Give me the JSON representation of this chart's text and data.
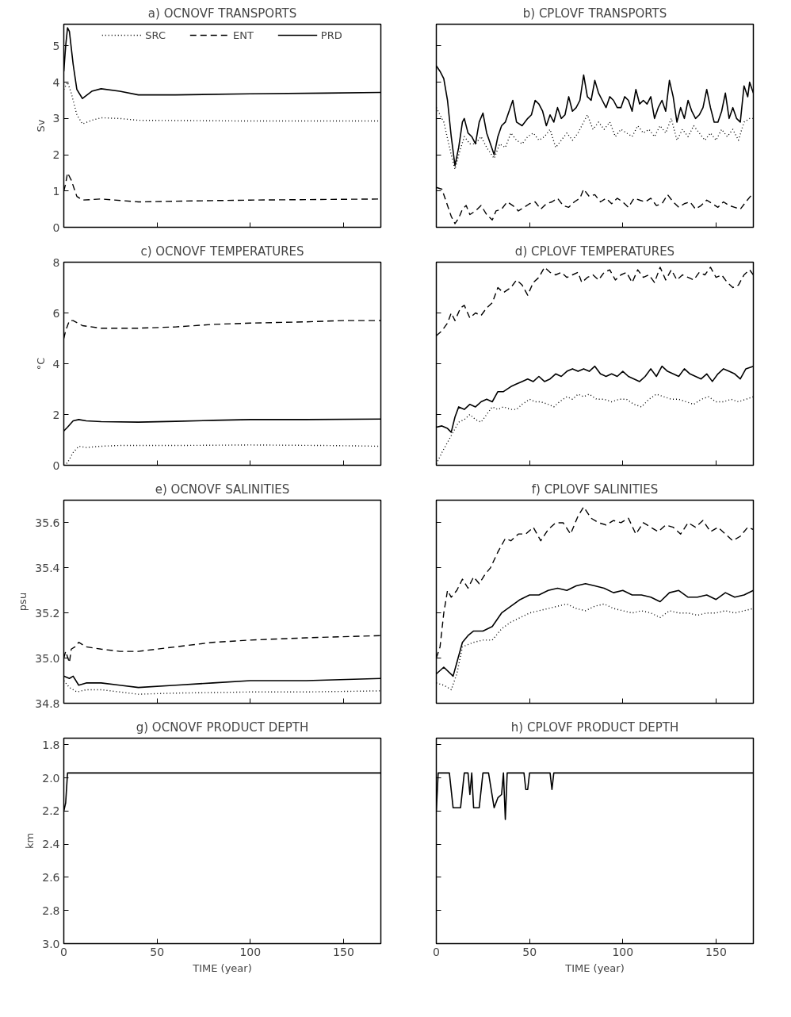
{
  "chart_data": [
    {
      "type": "line",
      "title": "a) OCNOVF TRANSPORTS",
      "ylabel": "Sv",
      "xlim": [
        0,
        170
      ],
      "ylim": [
        0,
        5.6
      ],
      "xticks": [
        0,
        50,
        100,
        150
      ],
      "yticks": [
        0,
        1,
        2,
        3,
        4,
        5
      ],
      "tick_labels": "y",
      "legend": "top",
      "series": [
        {
          "name": "SRC",
          "color": "#000000",
          "line_style": "dotted",
          "x": [
            0,
            2,
            4,
            7,
            10,
            15,
            20,
            30,
            40,
            100,
            170
          ],
          "values": [
            3.8,
            4.0,
            3.7,
            3.1,
            2.85,
            2.95,
            3.02,
            3.0,
            2.95,
            2.93,
            2.93
          ]
        },
        {
          "name": "ENT",
          "color": "#000000",
          "line_style": "dashed",
          "x": [
            0,
            1,
            2,
            4,
            7,
            10,
            20,
            40,
            60,
            100,
            170
          ],
          "values": [
            1.0,
            1.2,
            1.5,
            1.3,
            0.85,
            0.75,
            0.78,
            0.7,
            0.72,
            0.75,
            0.78
          ]
        },
        {
          "name": "PRD",
          "color": "#000000",
          "line_style": "solid",
          "x": [
            0,
            1,
            2,
            3,
            5,
            7,
            10,
            15,
            20,
            30,
            40,
            60,
            100,
            140,
            170
          ],
          "values": [
            4.3,
            5.0,
            5.5,
            5.4,
            4.5,
            3.8,
            3.55,
            3.75,
            3.82,
            3.75,
            3.65,
            3.65,
            3.68,
            3.7,
            3.72
          ]
        }
      ]
    },
    {
      "type": "line",
      "title": "b) CPLOVF TRANSPORTS",
      "xlim": [
        0,
        170
      ],
      "ylim": [
        0,
        5.6
      ],
      "xticks": [
        0,
        50,
        100,
        150
      ],
      "yticks": [
        0,
        1,
        2,
        3,
        4,
        5
      ],
      "tick_labels": false,
      "series": [
        {
          "color": "#000000",
          "line_style": "dotted",
          "x": [
            0,
            4,
            8,
            10,
            12,
            15,
            18,
            21,
            24,
            27,
            31,
            34,
            37,
            40,
            43,
            46,
            49,
            52,
            55,
            58,
            61,
            64,
            67,
            70,
            73,
            76,
            79,
            81,
            84,
            87,
            90,
            93,
            96,
            99,
            102,
            105,
            108,
            111,
            114,
            117,
            120,
            123,
            126,
            129,
            132,
            135,
            138,
            141,
            144,
            147,
            150,
            153,
            156,
            159,
            162,
            165,
            168,
            170
          ],
          "values": [
            3.3,
            2.9,
            2.0,
            1.6,
            2.0,
            2.5,
            2.3,
            2.3,
            2.5,
            2.2,
            1.9,
            2.3,
            2.2,
            2.6,
            2.4,
            2.3,
            2.5,
            2.6,
            2.4,
            2.5,
            2.7,
            2.2,
            2.4,
            2.6,
            2.4,
            2.6,
            2.9,
            3.1,
            2.7,
            2.9,
            2.7,
            2.9,
            2.5,
            2.7,
            2.6,
            2.5,
            2.8,
            2.6,
            2.7,
            2.5,
            2.8,
            2.6,
            3.0,
            2.4,
            2.7,
            2.5,
            2.8,
            2.6,
            2.4,
            2.6,
            2.4,
            2.7,
            2.5,
            2.7,
            2.4,
            2.9,
            3.0,
            3.0
          ]
        },
        {
          "color": "#000000",
          "line_style": "dashed",
          "x": [
            0,
            3,
            6,
            8,
            10,
            12,
            14,
            16,
            18,
            21,
            24,
            27,
            30,
            32,
            35,
            38,
            41,
            44,
            47,
            50,
            53,
            56,
            59,
            62,
            65,
            68,
            71,
            74,
            77,
            79,
            82,
            85,
            88,
            91,
            94,
            97,
            100,
            103,
            106,
            109,
            112,
            115,
            118,
            121,
            124,
            127,
            130,
            133,
            136,
            139,
            142,
            145,
            148,
            151,
            154,
            157,
            160,
            163,
            166,
            170
          ],
          "values": [
            1.1,
            1.05,
            0.6,
            0.3,
            0.1,
            0.25,
            0.5,
            0.6,
            0.35,
            0.45,
            0.6,
            0.35,
            0.2,
            0.45,
            0.5,
            0.7,
            0.6,
            0.45,
            0.55,
            0.65,
            0.7,
            0.5,
            0.65,
            0.7,
            0.8,
            0.6,
            0.55,
            0.7,
            0.8,
            1.05,
            0.85,
            0.9,
            0.7,
            0.8,
            0.65,
            0.8,
            0.7,
            0.55,
            0.8,
            0.75,
            0.7,
            0.8,
            0.6,
            0.65,
            0.9,
            0.7,
            0.55,
            0.65,
            0.7,
            0.5,
            0.6,
            0.75,
            0.65,
            0.55,
            0.7,
            0.6,
            0.55,
            0.5,
            0.7,
            0.95
          ]
        },
        {
          "color": "#000000",
          "line_style": "solid",
          "x": [
            0,
            2,
            4,
            6,
            8,
            10,
            12,
            14,
            15,
            17,
            19,
            21,
            23,
            25,
            27,
            29,
            31,
            33,
            35,
            37,
            39,
            41,
            43,
            46,
            49,
            51,
            53,
            55,
            57,
            59,
            61,
            63,
            65,
            67,
            69,
            71,
            73,
            75,
            77,
            79,
            81,
            83,
            85,
            87,
            89,
            91,
            93,
            95,
            97,
            99,
            101,
            103,
            105,
            107,
            109,
            111,
            113,
            115,
            117,
            119,
            121,
            123,
            125,
            127,
            129,
            131,
            133,
            135,
            137,
            139,
            141,
            143,
            145,
            147,
            149,
            151,
            153,
            155,
            157,
            159,
            161,
            163,
            165,
            167,
            168,
            170
          ],
          "values": [
            4.45,
            4.3,
            4.1,
            3.5,
            2.5,
            1.7,
            2.2,
            2.9,
            3.0,
            2.6,
            2.5,
            2.3,
            2.9,
            3.15,
            2.6,
            2.3,
            2.0,
            2.5,
            2.8,
            2.9,
            3.2,
            3.5,
            2.9,
            2.8,
            3.0,
            3.1,
            3.5,
            3.4,
            3.2,
            2.8,
            3.1,
            2.9,
            3.3,
            3.0,
            3.1,
            3.6,
            3.2,
            3.3,
            3.5,
            4.2,
            3.6,
            3.5,
            4.05,
            3.7,
            3.5,
            3.3,
            3.6,
            3.5,
            3.3,
            3.3,
            3.6,
            3.5,
            3.2,
            3.8,
            3.4,
            3.5,
            3.4,
            3.6,
            3.0,
            3.3,
            3.5,
            3.2,
            4.05,
            3.6,
            2.9,
            3.3,
            3.0,
            3.5,
            3.2,
            3.0,
            3.1,
            3.3,
            3.8,
            3.3,
            2.9,
            2.9,
            3.2,
            3.7,
            3.0,
            3.3,
            3.0,
            2.9,
            3.9,
            3.6,
            4.0,
            3.7
          ]
        }
      ]
    },
    {
      "type": "line",
      "title": "c) OCNOVF TEMPERATURES",
      "ylabel": "°C",
      "xlim": [
        0,
        170
      ],
      "ylim": [
        0,
        8
      ],
      "xticks": [
        0,
        50,
        100,
        150
      ],
      "yticks": [
        0,
        2,
        4,
        6,
        8
      ],
      "tick_labels": "y",
      "series": [
        {
          "color": "#000000",
          "line_style": "dotted",
          "x": [
            0,
            2,
            5,
            8,
            12,
            20,
            30,
            60,
            100,
            140,
            170
          ],
          "values": [
            0,
            0.1,
            0.5,
            0.75,
            0.7,
            0.75,
            0.78,
            0.78,
            0.8,
            0.78,
            0.75
          ]
        },
        {
          "color": "#000000",
          "line_style": "dashed",
          "x": [
            0,
            1,
            3,
            5,
            10,
            20,
            40,
            60,
            80,
            100,
            130,
            150,
            170
          ],
          "values": [
            5.0,
            5.3,
            5.7,
            5.7,
            5.5,
            5.4,
            5.4,
            5.45,
            5.55,
            5.6,
            5.65,
            5.7,
            5.7
          ]
        },
        {
          "color": "#000000",
          "line_style": "solid",
          "x": [
            0,
            2,
            5,
            8,
            12,
            20,
            40,
            60,
            80,
            100,
            130,
            170
          ],
          "values": [
            1.35,
            1.5,
            1.75,
            1.8,
            1.75,
            1.72,
            1.7,
            1.73,
            1.77,
            1.8,
            1.8,
            1.82
          ]
        }
      ]
    },
    {
      "type": "line",
      "title": "d) CPLOVF TEMPERATURES",
      "xlim": [
        0,
        170
      ],
      "ylim": [
        0,
        8
      ],
      "xticks": [
        0,
        50,
        100,
        150
      ],
      "yticks": [
        0,
        2,
        4,
        6,
        8
      ],
      "tick_labels": false,
      "series": [
        {
          "color": "#000000",
          "line_style": "dotted",
          "x": [
            0,
            3,
            6,
            9,
            12,
            15,
            18,
            21,
            24,
            27,
            30,
            33,
            36,
            40,
            43,
            46,
            50,
            53,
            56,
            60,
            63,
            66,
            70,
            73,
            76,
            79,
            82,
            86,
            90,
            94,
            98,
            102,
            106,
            110,
            114,
            118,
            122,
            126,
            130,
            134,
            138,
            142,
            146,
            150,
            154,
            158,
            162,
            166,
            170
          ],
          "values": [
            0.05,
            0.5,
            0.9,
            1.3,
            1.7,
            1.8,
            2.0,
            1.8,
            1.7,
            2.0,
            2.3,
            2.2,
            2.3,
            2.2,
            2.2,
            2.4,
            2.6,
            2.5,
            2.5,
            2.4,
            2.3,
            2.5,
            2.7,
            2.6,
            2.8,
            2.7,
            2.8,
            2.6,
            2.6,
            2.5,
            2.6,
            2.6,
            2.4,
            2.3,
            2.6,
            2.8,
            2.7,
            2.6,
            2.6,
            2.5,
            2.4,
            2.6,
            2.7,
            2.5,
            2.5,
            2.6,
            2.5,
            2.6,
            2.7
          ]
        },
        {
          "color": "#000000",
          "line_style": "dashed",
          "x": [
            0,
            3,
            6,
            8,
            10,
            13,
            15,
            18,
            21,
            24,
            27,
            30,
            33,
            36,
            40,
            43,
            46,
            49,
            52,
            55,
            58,
            61,
            64,
            67,
            70,
            73,
            76,
            78,
            81,
            84,
            87,
            90,
            93,
            96,
            99,
            102,
            105,
            108,
            111,
            114,
            117,
            120,
            123,
            126,
            129,
            132,
            135,
            138,
            141,
            144,
            147,
            150,
            153,
            156,
            159,
            162,
            165,
            168,
            170
          ],
          "values": [
            5.1,
            5.3,
            5.6,
            6.0,
            5.7,
            6.2,
            6.3,
            5.8,
            6.0,
            5.9,
            6.2,
            6.4,
            7.0,
            6.8,
            7.0,
            7.3,
            7.1,
            6.7,
            7.2,
            7.4,
            7.8,
            7.6,
            7.5,
            7.6,
            7.4,
            7.5,
            7.6,
            7.2,
            7.4,
            7.5,
            7.3,
            7.6,
            7.7,
            7.3,
            7.5,
            7.6,
            7.2,
            7.7,
            7.4,
            7.5,
            7.2,
            7.8,
            7.3,
            7.7,
            7.3,
            7.5,
            7.4,
            7.3,
            7.6,
            7.5,
            7.8,
            7.4,
            7.5,
            7.2,
            7.0,
            7.1,
            7.5,
            7.7,
            7.5
          ]
        },
        {
          "color": "#000000",
          "line_style": "solid",
          "x": [
            0,
            3,
            6,
            8,
            10,
            12,
            15,
            18,
            21,
            24,
            27,
            30,
            33,
            36,
            40,
            43,
            46,
            49,
            52,
            55,
            58,
            61,
            64,
            67,
            70,
            73,
            76,
            79,
            82,
            85,
            88,
            91,
            94,
            97,
            100,
            103,
            106,
            109,
            112,
            115,
            118,
            121,
            124,
            127,
            130,
            133,
            136,
            139,
            142,
            145,
            148,
            151,
            154,
            157,
            160,
            163,
            166,
            170
          ],
          "values": [
            1.5,
            1.55,
            1.45,
            1.3,
            1.9,
            2.3,
            2.2,
            2.4,
            2.3,
            2.5,
            2.6,
            2.5,
            2.9,
            2.9,
            3.1,
            3.2,
            3.3,
            3.4,
            3.3,
            3.5,
            3.3,
            3.4,
            3.6,
            3.5,
            3.7,
            3.8,
            3.7,
            3.8,
            3.7,
            3.9,
            3.6,
            3.5,
            3.6,
            3.5,
            3.7,
            3.5,
            3.4,
            3.3,
            3.5,
            3.8,
            3.5,
            3.9,
            3.7,
            3.6,
            3.5,
            3.8,
            3.6,
            3.5,
            3.4,
            3.6,
            3.3,
            3.6,
            3.8,
            3.7,
            3.6,
            3.4,
            3.8,
            3.9
          ]
        }
      ]
    },
    {
      "type": "line",
      "title": "e) OCNOVF SALINITIES",
      "ylabel": "psu",
      "xlim": [
        0,
        170
      ],
      "ylim": [
        34.8,
        35.7
      ],
      "xticks": [
        0,
        50,
        100,
        150
      ],
      "yticks": [
        34.8,
        {
          "value": 35,
          "label": "35.0"
        },
        35.2,
        35.4,
        35.6
      ],
      "tick_labels": "y",
      "series": [
        {
          "color": "#000000",
          "line_style": "dotted",
          "x": [
            0,
            3,
            7,
            12,
            20,
            40,
            60,
            100,
            130,
            170
          ],
          "values": [
            34.9,
            34.87,
            34.85,
            34.86,
            34.86,
            34.84,
            34.845,
            34.85,
            34.85,
            34.855
          ]
        },
        {
          "color": "#000000",
          "line_style": "dashed",
          "x": [
            0,
            1,
            3,
            4,
            6,
            8,
            12,
            20,
            30,
            40,
            60,
            80,
            100,
            130,
            170
          ],
          "values": [
            35.0,
            35.03,
            34.98,
            35.04,
            35.05,
            35.07,
            35.05,
            35.04,
            35.03,
            35.03,
            35.05,
            35.07,
            35.08,
            35.09,
            35.1
          ]
        },
        {
          "color": "#000000",
          "line_style": "solid",
          "x": [
            0,
            3,
            5,
            8,
            12,
            20,
            30,
            40,
            60,
            80,
            100,
            130,
            170
          ],
          "values": [
            34.92,
            34.91,
            34.92,
            34.88,
            34.89,
            34.89,
            34.88,
            34.87,
            34.88,
            34.89,
            34.9,
            34.9,
            34.91
          ]
        }
      ]
    },
    {
      "type": "line",
      "title": "f) CPLOVF SALINITIES",
      "xlim": [
        0,
        170
      ],
      "ylim": [
        34.8,
        35.7
      ],
      "xticks": [
        0,
        50,
        100,
        150
      ],
      "yticks": [
        34.8,
        35,
        35.2,
        35.4,
        35.6
      ],
      "tick_labels": false,
      "series": [
        {
          "color": "#000000",
          "line_style": "dotted",
          "x": [
            0,
            4,
            8,
            11,
            14,
            20,
            25,
            30,
            35,
            40,
            45,
            50,
            55,
            60,
            65,
            70,
            75,
            80,
            85,
            90,
            95,
            100,
            105,
            110,
            115,
            120,
            125,
            130,
            135,
            140,
            145,
            150,
            155,
            160,
            165,
            170
          ],
          "values": [
            34.89,
            34.88,
            34.86,
            34.93,
            35.05,
            35.07,
            35.08,
            35.08,
            35.13,
            35.16,
            35.18,
            35.2,
            35.21,
            35.22,
            35.23,
            35.24,
            35.22,
            35.21,
            35.23,
            35.24,
            35.22,
            35.21,
            35.2,
            35.21,
            35.2,
            35.18,
            35.21,
            35.2,
            35.2,
            35.19,
            35.2,
            35.2,
            35.21,
            35.2,
            35.21,
            35.22
          ]
        },
        {
          "color": "#000000",
          "line_style": "dashed",
          "x": [
            0,
            2,
            4,
            6,
            8,
            11,
            14,
            17,
            20,
            23,
            26,
            29,
            33,
            37,
            40,
            44,
            48,
            52,
            56,
            60,
            64,
            68,
            72,
            76,
            79,
            83,
            87,
            91,
            95,
            99,
            103,
            107,
            111,
            115,
            119,
            123,
            127,
            131,
            135,
            139,
            143,
            147,
            151,
            155,
            159,
            163,
            167,
            170
          ],
          "values": [
            35.0,
            35.05,
            35.2,
            35.3,
            35.27,
            35.3,
            35.35,
            35.31,
            35.36,
            35.33,
            35.37,
            35.4,
            35.47,
            35.53,
            35.52,
            35.55,
            35.55,
            35.58,
            35.52,
            35.57,
            35.6,
            35.6,
            35.55,
            35.63,
            35.67,
            35.62,
            35.6,
            35.59,
            35.61,
            35.6,
            35.62,
            35.55,
            35.6,
            35.58,
            35.56,
            35.59,
            35.58,
            35.55,
            35.6,
            35.58,
            35.61,
            35.56,
            35.58,
            35.55,
            35.52,
            35.54,
            35.58,
            35.57
          ]
        },
        {
          "color": "#000000",
          "line_style": "solid",
          "x": [
            0,
            4,
            9,
            11,
            14,
            17,
            20,
            25,
            30,
            35,
            40,
            45,
            50,
            55,
            60,
            65,
            70,
            75,
            80,
            85,
            90,
            95,
            100,
            105,
            110,
            115,
            120,
            125,
            130,
            135,
            140,
            145,
            150,
            155,
            160,
            165,
            170
          ],
          "values": [
            34.93,
            34.96,
            34.92,
            34.98,
            35.07,
            35.1,
            35.12,
            35.12,
            35.14,
            35.2,
            35.23,
            35.26,
            35.28,
            35.28,
            35.3,
            35.31,
            35.3,
            35.32,
            35.33,
            35.32,
            35.31,
            35.29,
            35.3,
            35.28,
            35.28,
            35.27,
            35.25,
            35.29,
            35.3,
            35.27,
            35.27,
            35.28,
            35.26,
            35.29,
            35.27,
            35.28,
            35.3
          ]
        }
      ]
    },
    {
      "type": "line",
      "title": "g) OCNOVF PRODUCT DEPTH",
      "xlabel": "TIME (year)",
      "ylabel": "km",
      "xlim": [
        0,
        170
      ],
      "ylim": [
        3.0,
        1.76
      ],
      "xticks": [
        0,
        50,
        100,
        150
      ],
      "yticks": [
        1.8,
        {
          "value": 2,
          "label": "2.0"
        },
        2.2,
        2.4,
        2.6,
        2.8,
        {
          "value": 3,
          "label": "3.0"
        }
      ],
      "series": [
        {
          "color": "#000000",
          "line_style": "solid",
          "x": [
            0,
            1,
            2,
            170
          ],
          "values": [
            2.2,
            2.15,
            1.97,
            1.97
          ]
        }
      ]
    },
    {
      "type": "line",
      "title": "h) CPLOVF PRODUCT DEPTH",
      "xlabel": "TIME (year)",
      "xlim": [
        0,
        170
      ],
      "ylim": [
        3.0,
        1.76
      ],
      "xticks": [
        0,
        50,
        100,
        150
      ],
      "yticks": [
        1.8,
        2,
        2.2,
        2.4,
        2.6,
        2.8,
        3
      ],
      "tick_labels": "x",
      "series": [
        {
          "color": "#000000",
          "line_style": "solid",
          "x": [
            0,
            1,
            7,
            9,
            13,
            15,
            17,
            18,
            19,
            20,
            23,
            25,
            28,
            31,
            33,
            35,
            36,
            37,
            38,
            47,
            48,
            49,
            50,
            61,
            62,
            63,
            170
          ],
          "values": [
            2.2,
            1.97,
            1.97,
            2.18,
            2.18,
            1.97,
            1.97,
            2.1,
            1.97,
            2.18,
            2.18,
            1.97,
            1.97,
            2.18,
            2.12,
            2.1,
            1.97,
            2.25,
            1.97,
            1.97,
            2.07,
            2.07,
            1.97,
            1.97,
            2.07,
            1.97,
            1.97
          ]
        }
      ]
    }
  ]
}
